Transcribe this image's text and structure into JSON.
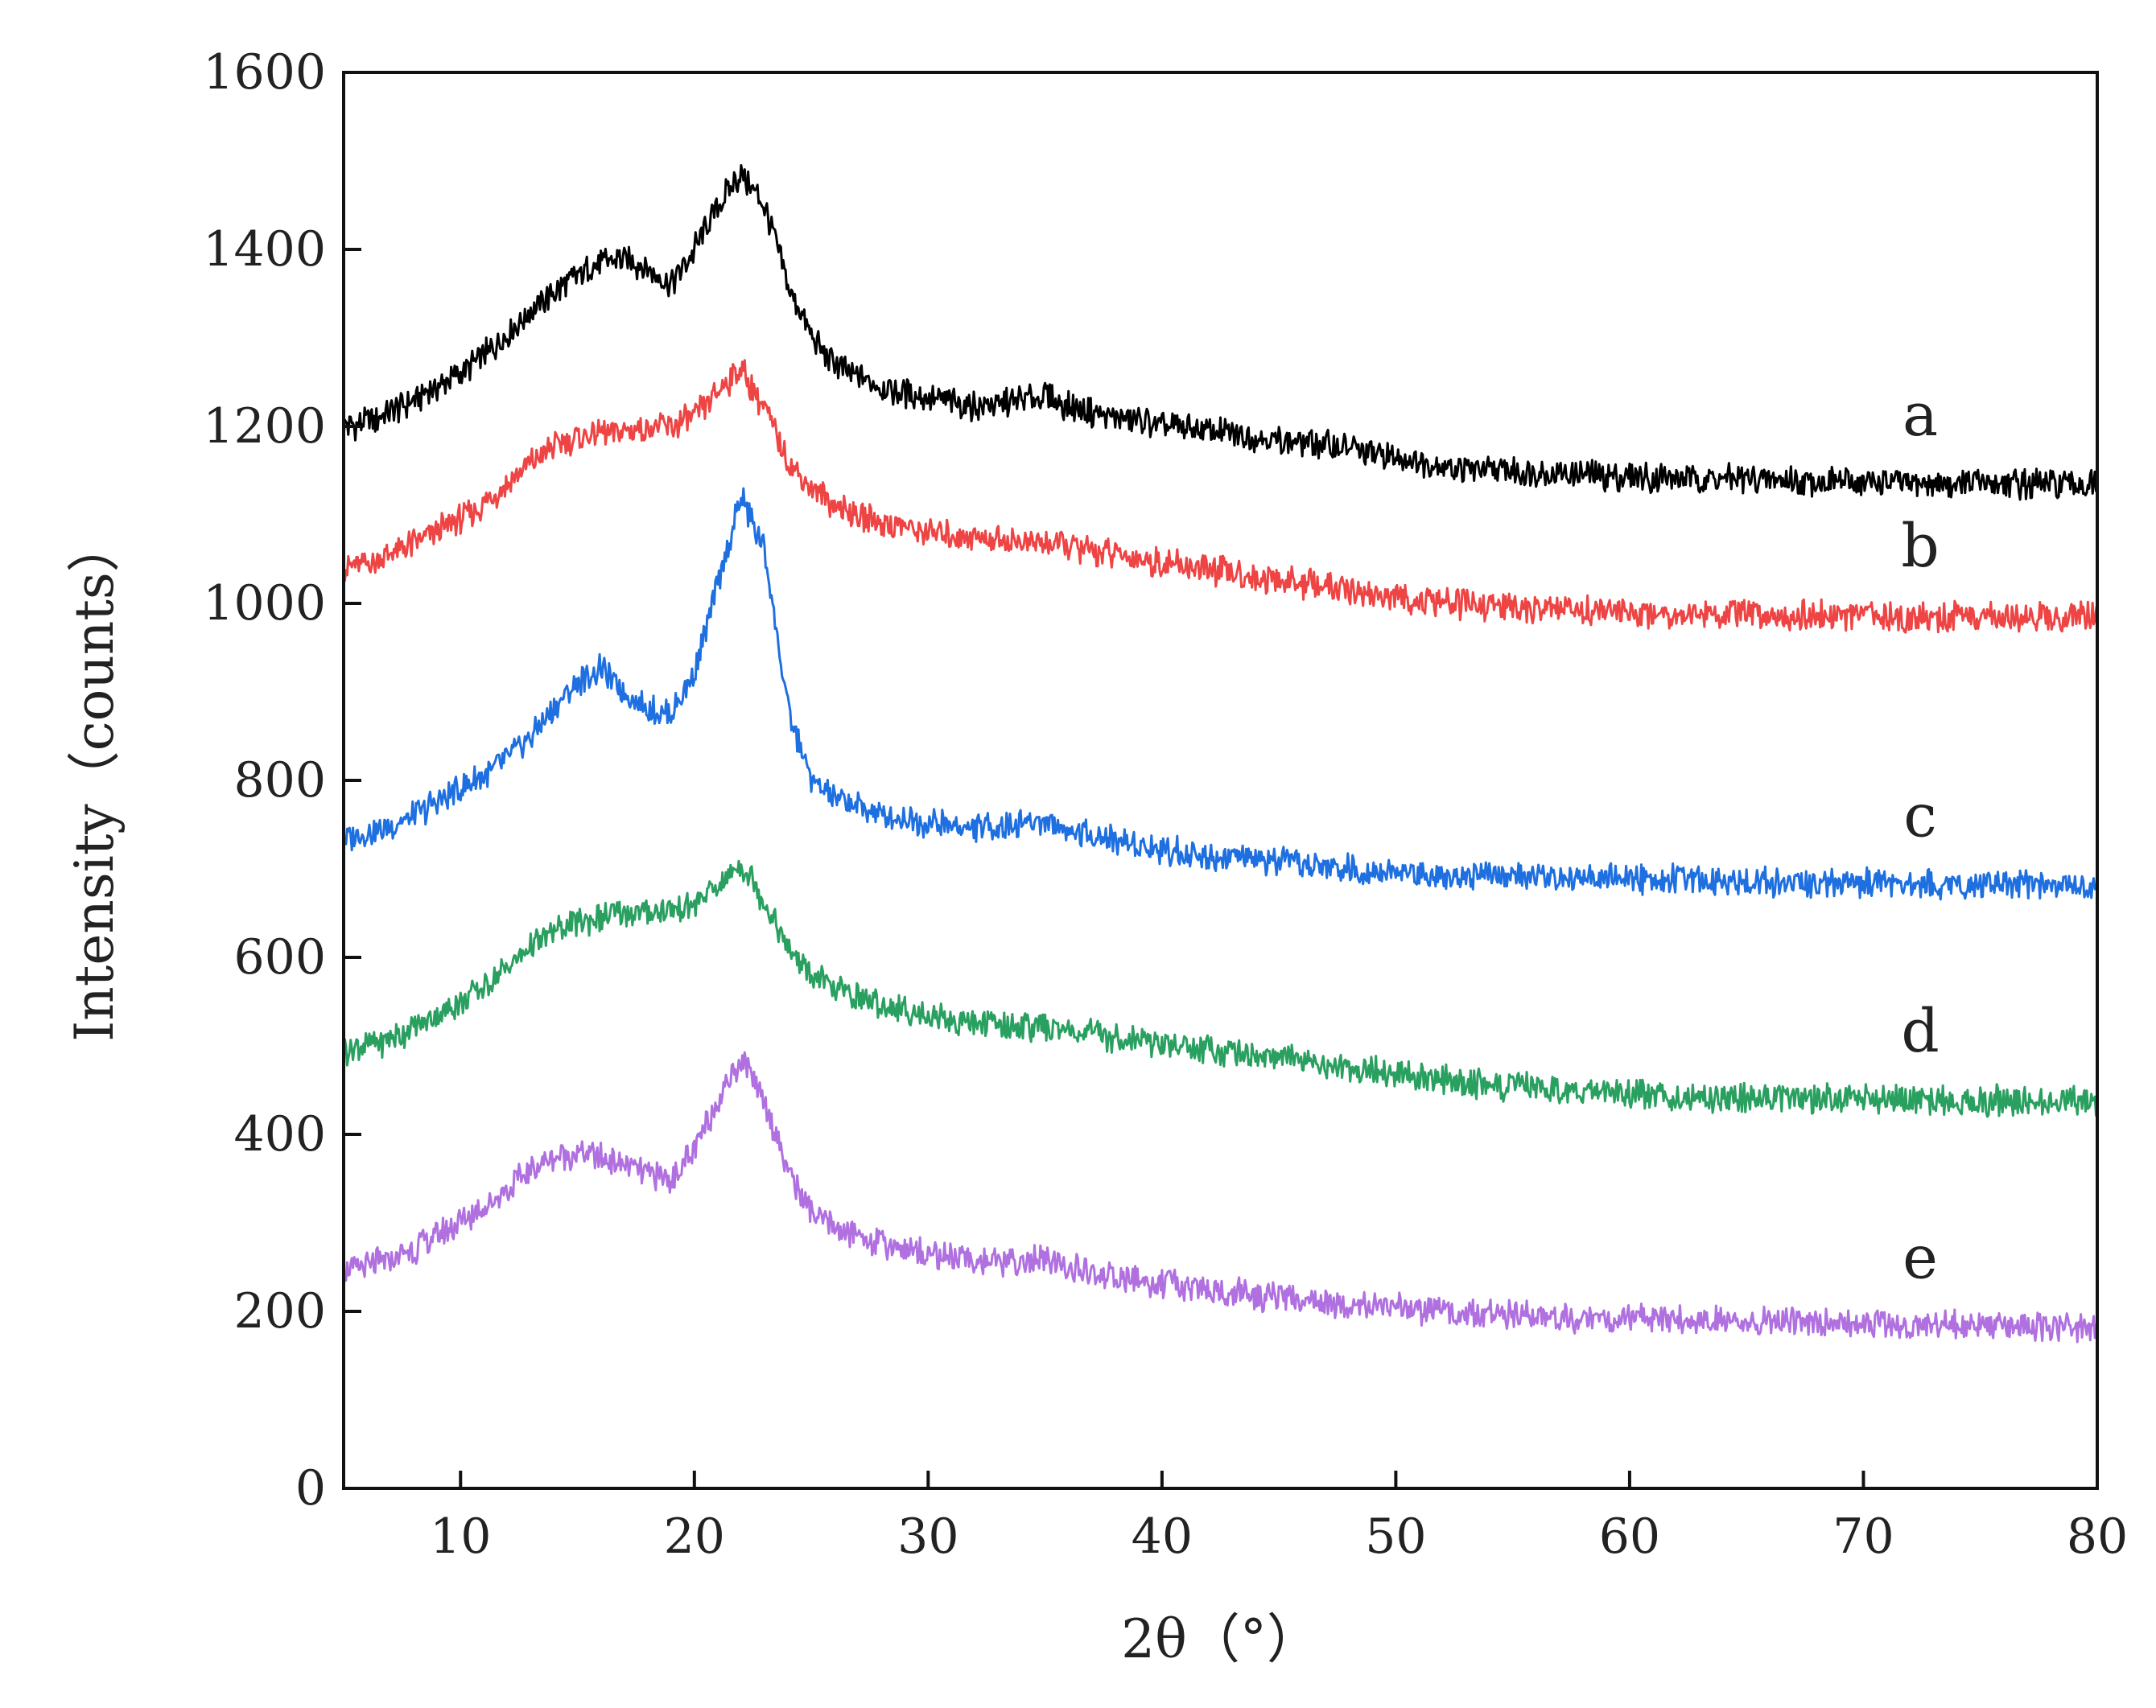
{
  "chart_data": {
    "type": "line",
    "title": "",
    "xlabel": "2θ（°）",
    "ylabel": "Intensity（counts）",
    "xlim": [
      5,
      80
    ],
    "ylim": [
      0,
      1600
    ],
    "xticks": [
      10,
      20,
      30,
      40,
      50,
      60,
      70,
      80
    ],
    "yticks": [
      0,
      200,
      400,
      600,
      800,
      1000,
      1200,
      1400,
      1600
    ],
    "grid": false,
    "legend": "inline labels at right",
    "x": [
      5,
      6,
      7,
      8,
      9,
      10,
      11,
      12,
      13,
      14,
      15,
      16,
      17,
      18,
      19,
      20,
      21,
      22,
      23,
      24,
      25,
      26,
      27,
      28,
      29,
      30,
      31,
      32,
      33,
      34,
      35,
      36,
      37,
      38,
      39,
      40,
      42,
      44,
      46,
      48,
      50,
      52,
      54,
      56,
      58,
      60,
      62,
      64,
      66,
      68,
      70,
      72,
      74,
      76,
      78,
      80
    ],
    "series": [
      {
        "name": "a",
        "label": "a",
        "color": "#000000",
        "values": [
          1200,
          1205,
          1215,
          1230,
          1245,
          1260,
          1280,
          1305,
          1330,
          1350,
          1370,
          1385,
          1390,
          1378,
          1360,
          1400,
          1450,
          1485,
          1450,
          1360,
          1300,
          1270,
          1255,
          1245,
          1238,
          1232,
          1228,
          1224,
          1225,
          1230,
          1235,
          1222,
          1215,
          1210,
          1206,
          1200,
          1195,
          1188,
          1182,
          1175,
          1165,
          1155,
          1150,
          1148,
          1145,
          1143,
          1142,
          1140,
          1139,
          1138,
          1137,
          1136,
          1135,
          1135,
          1134,
          1133
        ]
      },
      {
        "name": "b",
        "label": "b",
        "color": "#ee4444",
        "values": [
          1040,
          1045,
          1055,
          1068,
          1082,
          1095,
          1112,
          1135,
          1158,
          1178,
          1188,
          1192,
          1195,
          1198,
          1200,
          1210,
          1240,
          1265,
          1220,
          1160,
          1130,
          1112,
          1100,
          1092,
          1086,
          1080,
          1078,
          1075,
          1072,
          1070,
          1068,
          1065,
          1060,
          1055,
          1050,
          1045,
          1038,
          1030,
          1022,
          1015,
          1005,
          1000,
          997,
          994,
          992,
          990,
          989,
          988,
          987,
          986,
          986,
          985,
          985,
          985,
          985,
          985
        ]
      },
      {
        "name": "c",
        "label": "c",
        "color": "#1e6fe0",
        "values": [
          735,
          740,
          748,
          760,
          775,
          790,
          805,
          825,
          850,
          880,
          910,
          925,
          900,
          880,
          875,
          920,
          1020,
          1120,
          1060,
          880,
          800,
          780,
          770,
          762,
          757,
          752,
          748,
          746,
          748,
          752,
          755,
          745,
          738,
          732,
          728,
          722,
          715,
          710,
          705,
          700,
          695,
          693,
          692,
          691,
          690,
          689,
          688,
          687,
          686,
          685,
          684,
          683,
          682,
          682,
          681,
          680
        ]
      },
      {
        "name": "d",
        "label": "d",
        "color": "#2aa060",
        "values": [
          495,
          500,
          508,
          520,
          535,
          550,
          568,
          590,
          612,
          630,
          640,
          645,
          648,
          650,
          652,
          660,
          680,
          705,
          665,
          610,
          580,
          565,
          555,
          547,
          540,
          535,
          530,
          527,
          524,
          522,
          520,
          517,
          513,
          510,
          507,
          503,
          497,
          490,
          483,
          476,
          468,
          462,
          456,
          452,
          449,
          446,
          444,
          442,
          441,
          440,
          440,
          439,
          439,
          438,
          438,
          437
        ]
      },
      {
        "name": "e",
        "label": "e",
        "color": "#b070e0",
        "values": [
          245,
          250,
          258,
          270,
          285,
          300,
          318,
          338,
          360,
          375,
          380,
          375,
          365,
          355,
          350,
          380,
          440,
          485,
          440,
          360,
          310,
          295,
          285,
          278,
          272,
          266,
          262,
          258,
          255,
          256,
          258,
          250,
          243,
          238,
          234,
          230,
          225,
          218,
          212,
          207,
          203,
          200,
          197,
          195,
          193,
          192,
          190,
          189,
          188,
          187,
          186,
          185,
          184,
          183,
          182,
          181
        ]
      }
    ]
  }
}
